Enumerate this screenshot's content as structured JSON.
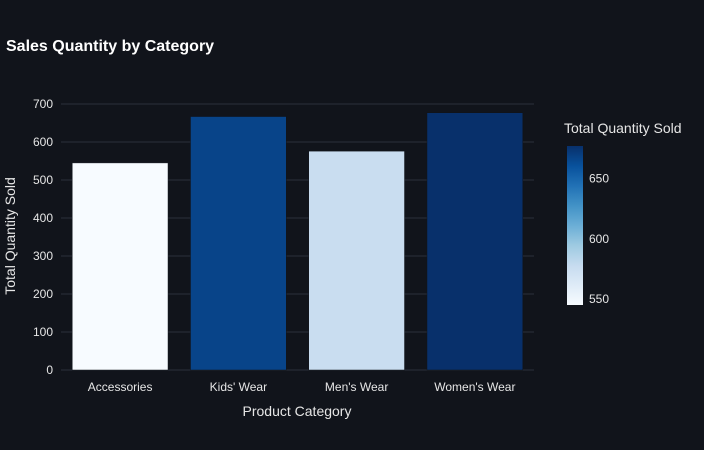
{
  "chart_data": {
    "type": "bar",
    "title": "Sales Quantity by Category",
    "xlabel": "Product Category",
    "ylabel": "Total Quantity Sold",
    "categories": [
      "Accessories",
      "Kids' Wear",
      "Men's Wear",
      "Women's Wear"
    ],
    "values": [
      545,
      667,
      576,
      677
    ],
    "ylim": [
      0,
      700
    ],
    "yticks": [
      0,
      100,
      200,
      300,
      400,
      500,
      600,
      700
    ],
    "grid": true,
    "colorbar": {
      "title": "Total Quantity Sold",
      "range": [
        545,
        677
      ],
      "ticks": [
        550,
        600,
        650
      ],
      "colorscale": "Blues"
    },
    "colors": {
      "background": "#11141b",
      "grid": "#2b303b",
      "bar_outline": "#11141b"
    }
  }
}
